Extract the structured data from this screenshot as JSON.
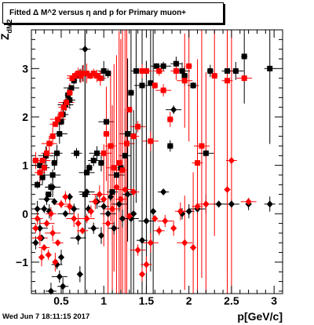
{
  "title": "Fitted Δ M^2 versus η and p for Primary muon+",
  "footer_timestamp": "Wed Jun  7 18:11:15 2017",
  "chart_data": {
    "type": "scatter",
    "title": "Fitted Δ M^2 versus η and p for Primary muon+",
    "xlabel": "p[GeV/c]",
    "ylabel_main": "Z",
    "ylabel_sub": "dM2",
    "xlim": [
      0.15,
      3.1
    ],
    "ylim": [
      -1.65,
      3.8
    ],
    "xticks": [
      0.5,
      1,
      1.5,
      2,
      2.5,
      3
    ],
    "xtick_labels": [
      "0.5",
      "1",
      "1.5",
      "2",
      "2.5",
      "3"
    ],
    "yticks": [
      -1,
      0,
      1,
      2,
      3
    ],
    "ytick_labels": [
      "−1",
      "0",
      "1",
      "2",
      "3"
    ],
    "series": [
      {
        "marker": "square",
        "color": "#000000",
        "points": [
          [
            0.2,
            1.1
          ],
          [
            0.22,
            0.6
          ],
          [
            0.25,
            1.0
          ],
          [
            0.28,
            0.75
          ],
          [
            0.3,
            0.95
          ],
          [
            0.32,
            1.2
          ],
          [
            0.35,
            0.4
          ],
          [
            0.38,
            0.55
          ],
          [
            0.4,
            0.8
          ],
          [
            0.42,
            1.05
          ],
          [
            0.45,
            1.25
          ],
          [
            0.48,
            1.65
          ],
          [
            0.5,
            1.9
          ],
          [
            0.52,
            2.05
          ],
          [
            0.55,
            2.25
          ],
          [
            0.58,
            2.45
          ],
          [
            0.6,
            2.35
          ],
          [
            0.62,
            2.6
          ],
          [
            0.65,
            2.75
          ],
          [
            0.68,
            1.25
          ],
          [
            0.72,
            2.85
          ],
          [
            0.75,
            2.9
          ],
          [
            0.78,
            0.4
          ],
          [
            0.8,
            0.85
          ],
          [
            0.83,
            0.95
          ],
          [
            0.88,
            1.1
          ],
          [
            0.92,
            1.25
          ],
          [
            0.97,
            1.05
          ],
          [
            1.0,
            2.95
          ],
          [
            1.03,
            1.9
          ],
          [
            1.05,
            2.9
          ],
          [
            1.1,
            0.45
          ],
          [
            1.15,
            0.8
          ],
          [
            1.2,
            0.95
          ],
          [
            1.25,
            1.2
          ],
          [
            1.28,
            1.65
          ],
          [
            1.32,
            2.5
          ],
          [
            1.38,
            2.95
          ],
          [
            1.45,
            2.65
          ],
          [
            1.55,
            2.7
          ],
          [
            1.62,
            3.05
          ],
          [
            1.7,
            3.05
          ],
          [
            1.78,
            1.4
          ],
          [
            1.85,
            3.1
          ],
          [
            1.92,
            2.95
          ],
          [
            1.95,
            2.85
          ],
          [
            2.05,
            2.65
          ],
          [
            2.2,
            1.25
          ],
          [
            2.25,
            2.95
          ],
          [
            2.45,
            2.95
          ],
          [
            2.55,
            2.95
          ],
          [
            2.65,
            3.25
          ],
          [
            2.95,
            3.0
          ]
        ]
      },
      {
        "marker": "square",
        "color": "#ff0000",
        "points": [
          [
            0.2,
            1.1
          ],
          [
            0.25,
            0.85
          ],
          [
            0.28,
            1.1
          ],
          [
            0.3,
            0.95
          ],
          [
            0.33,
            1.25
          ],
          [
            0.36,
            1.45
          ],
          [
            0.4,
            1.6
          ],
          [
            0.43,
            1.85
          ],
          [
            0.46,
            1.95
          ],
          [
            0.5,
            2.05
          ],
          [
            0.53,
            2.2
          ],
          [
            0.56,
            2.3
          ],
          [
            0.6,
            2.5
          ],
          [
            0.63,
            2.8
          ],
          [
            0.66,
            2.85
          ],
          [
            0.7,
            2.9
          ],
          [
            0.73,
            2.85
          ],
          [
            0.76,
            2.9
          ],
          [
            0.8,
            2.9
          ],
          [
            0.84,
            2.85
          ],
          [
            0.88,
            2.9
          ],
          [
            0.92,
            2.85
          ],
          [
            0.96,
            2.8
          ],
          [
            1.0,
            1.25
          ],
          [
            1.03,
            1.65
          ],
          [
            1.08,
            1.4
          ],
          [
            1.12,
            0.95
          ],
          [
            1.18,
            1.05
          ],
          [
            1.22,
            0.9
          ],
          [
            1.27,
            1.45
          ],
          [
            1.3,
            2.15
          ],
          [
            1.35,
            1.6
          ],
          [
            1.4,
            1.8
          ],
          [
            1.45,
            2.95
          ],
          [
            1.5,
            2.95
          ],
          [
            1.55,
            1.5
          ],
          [
            1.6,
            2.65
          ],
          [
            1.65,
            2.95
          ],
          [
            1.7,
            2.55
          ],
          [
            1.78,
            1.95
          ],
          [
            1.85,
            2.95
          ],
          [
            1.95,
            2.75
          ],
          [
            2.0,
            3.05
          ],
          [
            2.1,
            1.05
          ],
          [
            2.15,
            1.4
          ],
          [
            2.3,
            2.85
          ],
          [
            2.45,
            2.75
          ],
          [
            2.65,
            2.8
          ]
        ]
      },
      {
        "marker": "diamond",
        "color": "#000000",
        "points": [
          [
            0.2,
            -0.6
          ],
          [
            0.22,
            0.1
          ],
          [
            0.25,
            -0.3
          ],
          [
            0.27,
            -0.5
          ],
          [
            0.3,
            0.1
          ],
          [
            0.33,
            0.3
          ],
          [
            0.36,
            0.05
          ],
          [
            0.38,
            -1.6
          ],
          [
            0.4,
            0.55
          ],
          [
            0.42,
            0.25
          ],
          [
            0.45,
            -1.05
          ],
          [
            0.48,
            -1.3
          ],
          [
            0.5,
            -0.9
          ],
          [
            0.52,
            -1.5
          ],
          [
            0.55,
            0.0
          ],
          [
            0.6,
            0.35
          ],
          [
            0.65,
            0.1
          ],
          [
            0.7,
            -0.5
          ],
          [
            0.72,
            -1.25
          ],
          [
            0.78,
            3.4
          ],
          [
            0.8,
            0.45
          ],
          [
            0.82,
            0.1
          ],
          [
            0.88,
            -0.3
          ],
          [
            0.92,
            0.25
          ],
          [
            0.97,
            -0.45
          ],
          [
            1.0,
            0.15
          ],
          [
            1.05,
            0.0
          ],
          [
            1.08,
            0.35
          ],
          [
            1.12,
            -0.3
          ],
          [
            1.18,
            0.2
          ],
          [
            1.22,
            -0.1
          ],
          [
            1.28,
            0.4
          ],
          [
            1.32,
            -0.1
          ],
          [
            1.35,
            0.0
          ],
          [
            1.45,
            -0.55
          ],
          [
            1.5,
            -0.15
          ],
          [
            1.58,
            0.05
          ],
          [
            1.7,
            0.45
          ],
          [
            1.82,
            2.15
          ],
          [
            1.92,
            0.0
          ],
          [
            2.0,
            0.05
          ],
          [
            2.1,
            0.1
          ],
          [
            2.2,
            0.2
          ],
          [
            2.35,
            0.2
          ],
          [
            2.5,
            0.2
          ],
          [
            2.7,
            0.2
          ],
          [
            2.95,
            0.2
          ]
        ]
      },
      {
        "marker": "diamond",
        "color": "#ff0000",
        "points": [
          [
            0.2,
            -0.3
          ],
          [
            0.22,
            -0.1
          ],
          [
            0.25,
            -0.5
          ],
          [
            0.27,
            -0.9
          ],
          [
            0.3,
            -0.7
          ],
          [
            0.33,
            -0.2
          ],
          [
            0.35,
            -0.85
          ],
          [
            0.38,
            0.0
          ],
          [
            0.4,
            -0.4
          ],
          [
            0.43,
            -1.0
          ],
          [
            0.46,
            -0.6
          ],
          [
            0.5,
            0.2
          ],
          [
            0.55,
            0.35
          ],
          [
            0.6,
            0.15
          ],
          [
            0.65,
            -0.1
          ],
          [
            0.7,
            -0.2
          ],
          [
            0.75,
            -0.35
          ],
          [
            0.8,
            -0.1
          ],
          [
            0.85,
            0.05
          ],
          [
            0.9,
            0.25
          ],
          [
            0.95,
            0.4
          ],
          [
            1.0,
            0.3
          ],
          [
            1.05,
            -0.2
          ],
          [
            1.1,
            0.1
          ],
          [
            1.15,
            0.55
          ],
          [
            1.2,
            0.3
          ],
          [
            1.25,
            0.5
          ],
          [
            1.3,
            -0.05
          ],
          [
            1.35,
            0.45
          ],
          [
            1.4,
            -0.75
          ],
          [
            1.45,
            -1.25
          ],
          [
            1.5,
            -1.05
          ],
          [
            1.55,
            -0.6
          ],
          [
            1.6,
            -0.1
          ],
          [
            1.65,
            -0.35
          ],
          [
            1.72,
            -0.15
          ],
          [
            1.82,
            -0.3
          ],
          [
            1.9,
            0.05
          ],
          [
            1.95,
            -0.6
          ],
          [
            2.05,
            -0.7
          ],
          [
            2.1,
            0.15
          ],
          [
            2.2,
            0.2
          ],
          [
            2.45,
            0.5
          ],
          [
            2.5,
            1.1
          ],
          [
            2.7,
            0.25
          ]
        ]
      }
    ]
  }
}
